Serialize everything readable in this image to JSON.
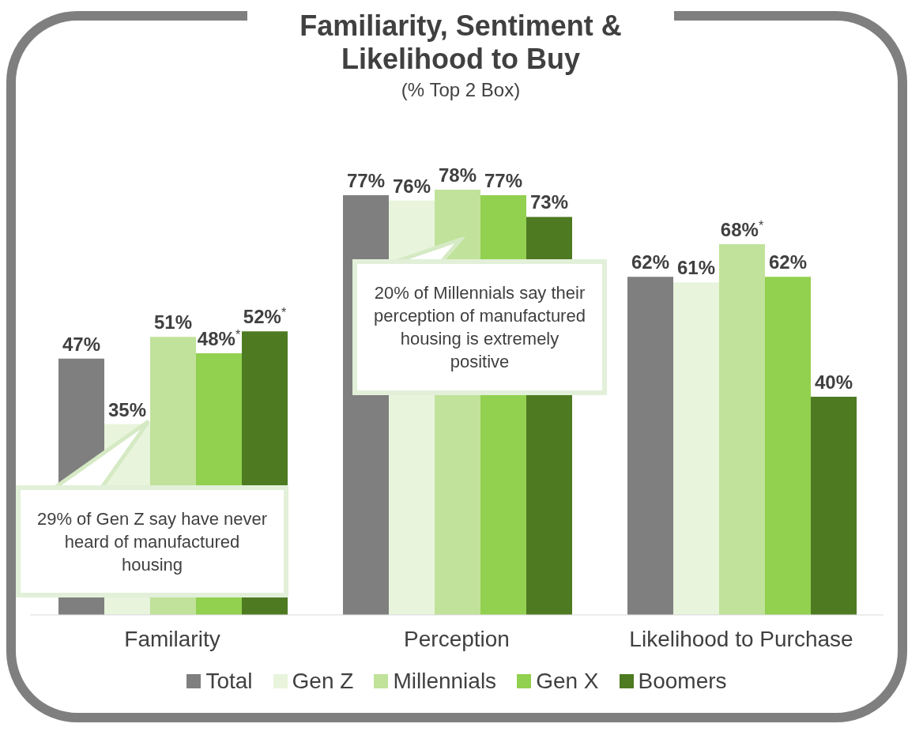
{
  "chart_data": {
    "type": "bar",
    "title": "Familiarity, Sentiment & Likelihood to Buy",
    "subtitle": "(% Top 2 Box)",
    "categories": [
      "Familarity",
      "Perception",
      "Likelihood to Purchase"
    ],
    "series": [
      {
        "name": "Total",
        "color": "#7f7f7f",
        "values": [
          47,
          77,
          62
        ],
        "value_labels": [
          "47%",
          "77%",
          "62%"
        ]
      },
      {
        "name": "Gen Z",
        "color": "#e8f4dc",
        "values": [
          35,
          76,
          61
        ],
        "value_labels": [
          "35%",
          "76%",
          "61%"
        ]
      },
      {
        "name": "Millennials",
        "color": "#c0e29a",
        "values": [
          51,
          78,
          68
        ],
        "value_labels": [
          "51%",
          "78%",
          "68%$^{*}$"
        ]
      },
      {
        "name": "Gen X",
        "color": "#92d050",
        "values": [
          48,
          77,
          62
        ],
        "value_labels": [
          "48%$^{*}$",
          "77%",
          "62%"
        ]
      },
      {
        "name": "Boomers",
        "color": "#4e7a22",
        "values": [
          52,
          73,
          40
        ],
        "value_labels": [
          "52%$^{*}$",
          "73%",
          "40%"
        ]
      }
    ],
    "annotations": [
      "29% of Gen Z say have never heard of manufactured housing",
      "20% of Millennials say their perception of manufactured housing is extremely positive"
    ],
    "legend": "bottom",
    "grid": false
  }
}
